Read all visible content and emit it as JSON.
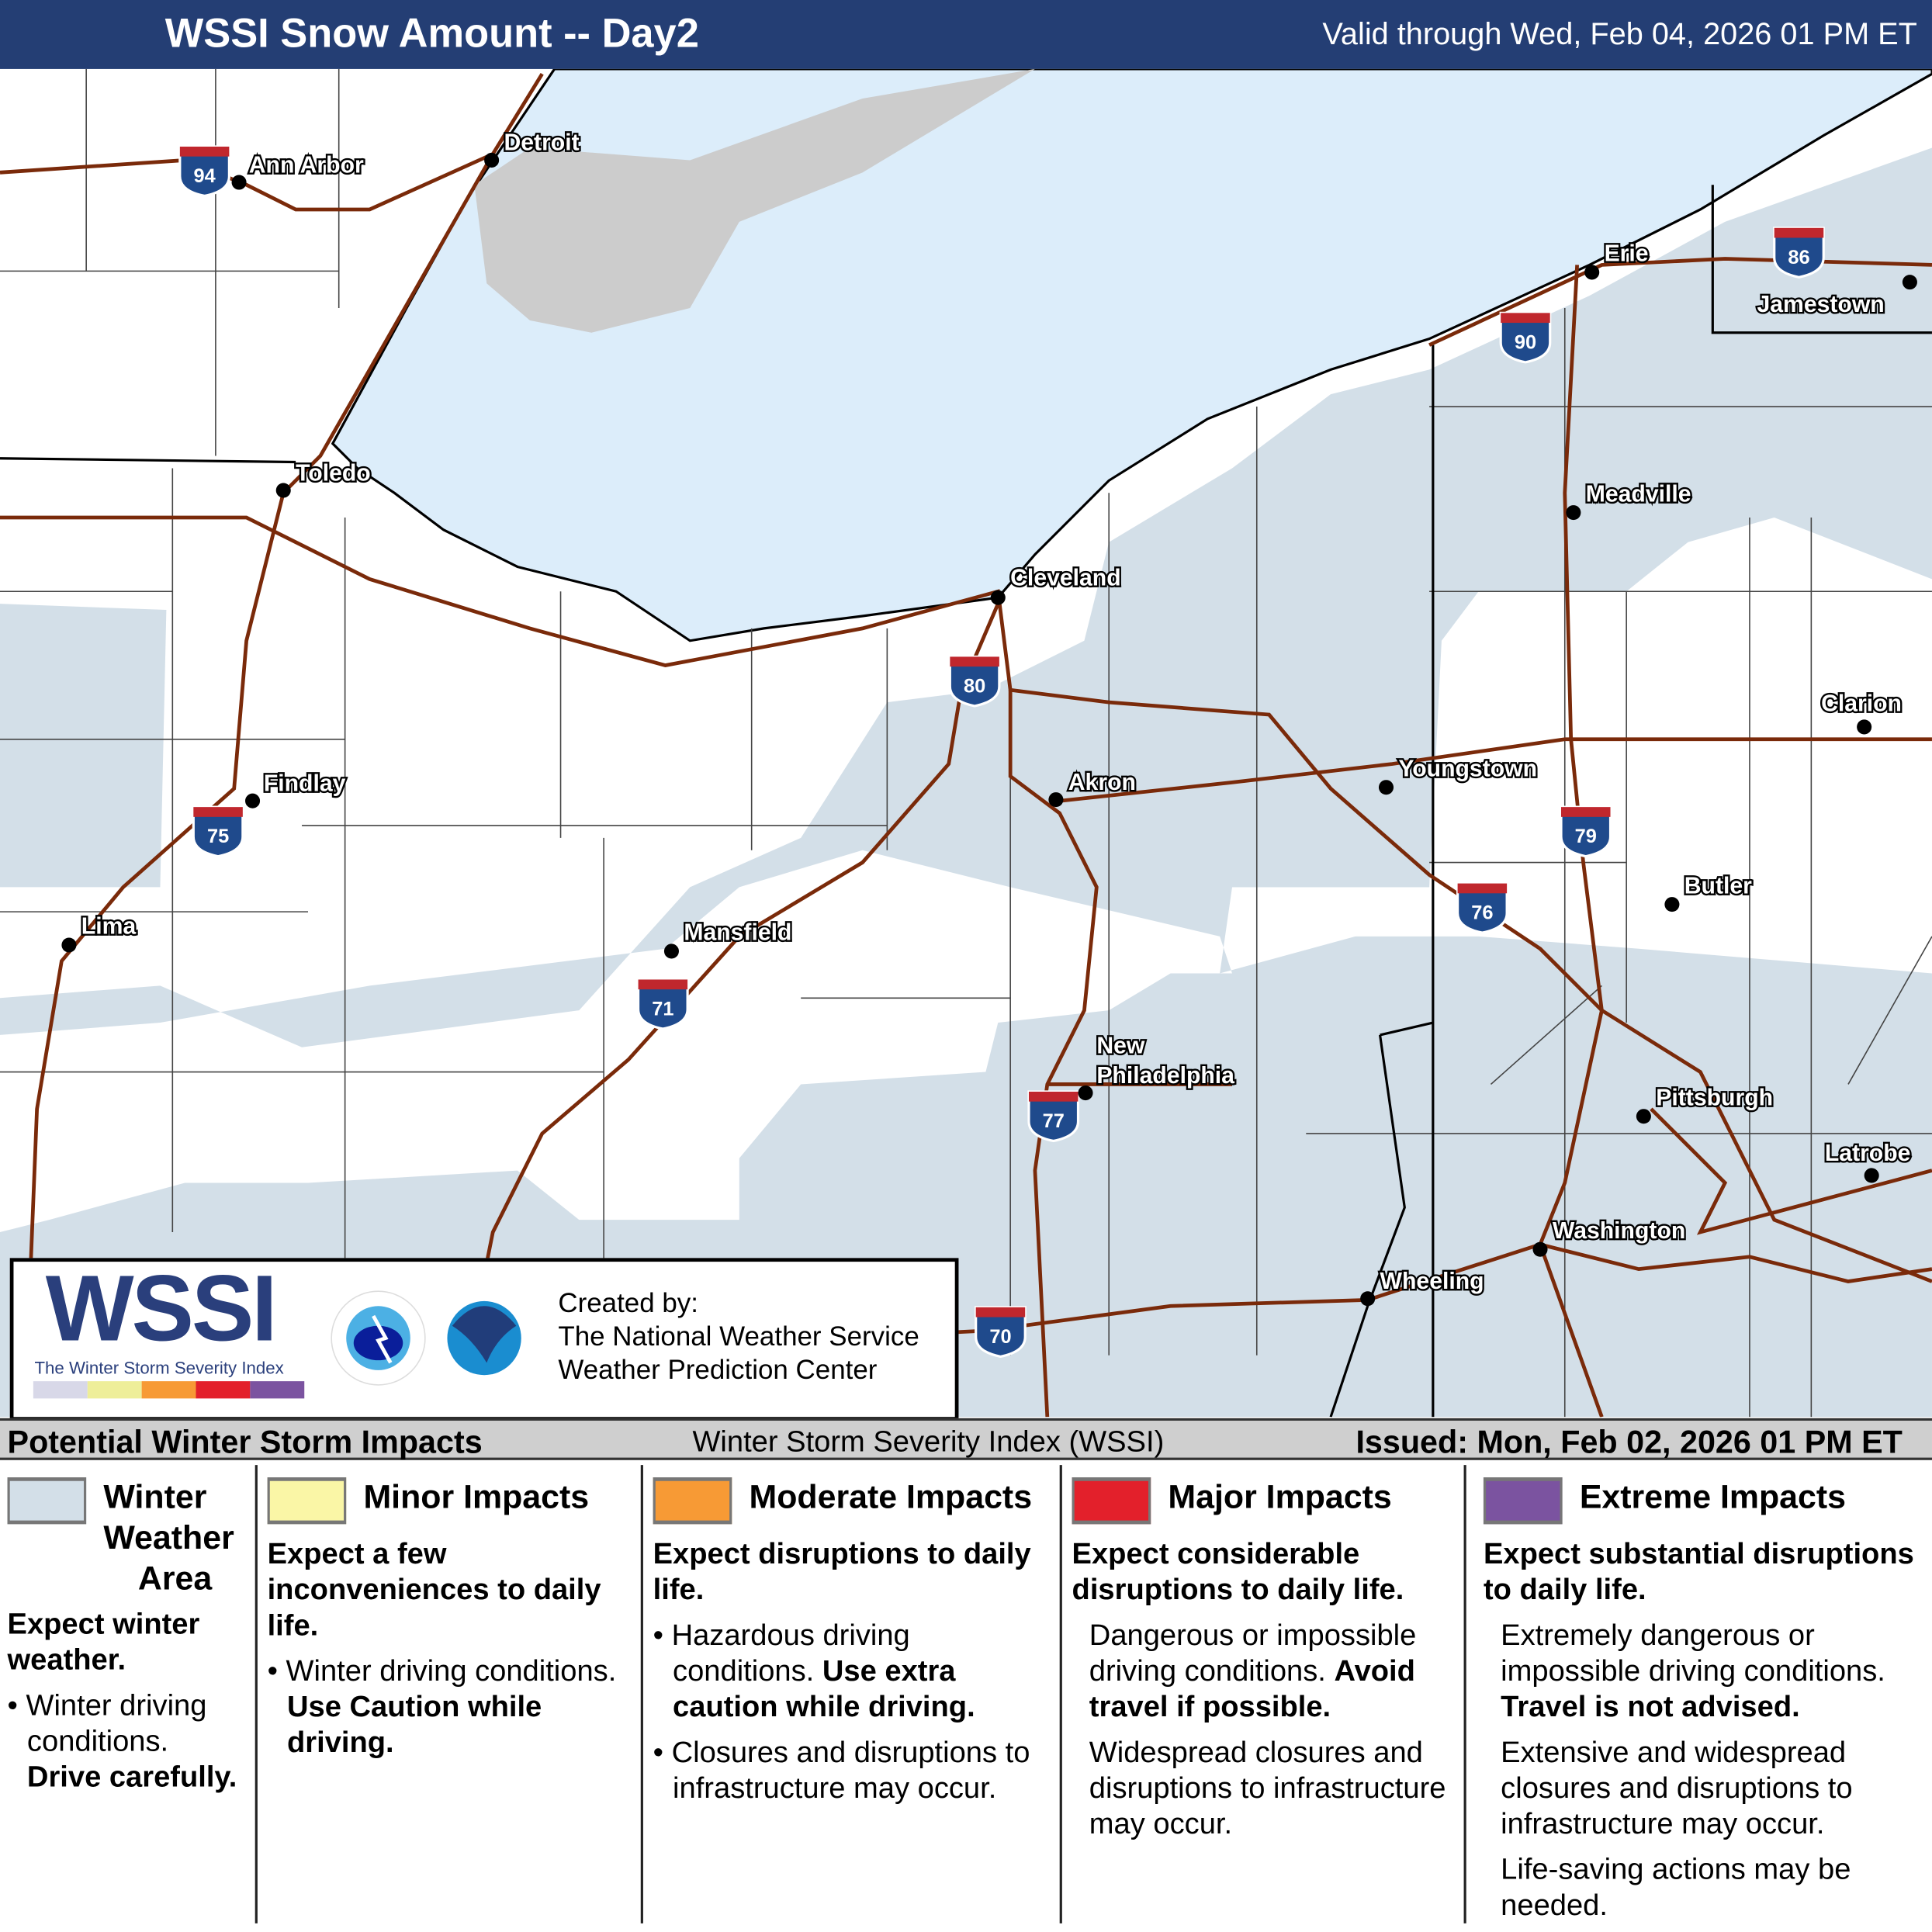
{
  "header": {
    "title": "WSSI Snow Amount -- Day2",
    "valid": "Valid through Wed, Feb 04, 2026 01 PM ET"
  },
  "map": {
    "colors": {
      "lake": "#dcedfa",
      "winter_area": "#d3dfe8",
      "roads": "#7a2a0a",
      "land": "#ffffff",
      "lake_st_clair": "#cccccc"
    },
    "cities": [
      {
        "name": "Ann Arbor"
      },
      {
        "name": "Detroit"
      },
      {
        "name": "Toledo"
      },
      {
        "name": "Findlay"
      },
      {
        "name": "Lima"
      },
      {
        "name": "Cleveland"
      },
      {
        "name": "Akron"
      },
      {
        "name": "Mansfield"
      },
      {
        "name": "Youngstown"
      },
      {
        "name": "Erie"
      },
      {
        "name": "Jamestown"
      },
      {
        "name": "Meadville"
      },
      {
        "name": "Clarion"
      },
      {
        "name": "Butler"
      },
      {
        "name": "Pittsburgh"
      },
      {
        "name": "Latrobe"
      },
      {
        "name": "Washington"
      },
      {
        "name": "Wheeling"
      },
      {
        "name": "New"
      },
      {
        "name": "Philadelphia"
      }
    ],
    "interstates": [
      "94",
      "75",
      "80",
      "71",
      "77",
      "70",
      "90",
      "86",
      "79",
      "76"
    ]
  },
  "logo": {
    "wordmark": "WSSI",
    "tagline": "The Winter Storm Severity Index",
    "created_by": "Created by:",
    "org1": "The National Weather Service",
    "org2": "Weather Prediction Center",
    "scale_colors": [
      "#d8d8e8",
      "#eeee99",
      "#f79a35",
      "#e3202b",
      "#7b53a0"
    ]
  },
  "bar": {
    "left": "Potential Winter Storm Impacts",
    "center": "Winter Storm Severity Index (WSSI)",
    "right": "Issued: Mon, Feb 02, 2026 01 PM ET"
  },
  "legend": [
    {
      "color": "#d3dfe8",
      "title": [
        "Winter",
        "Weather",
        "Area"
      ],
      "head": "Expect winter weather.",
      "bullet": "Winter driving conditions.",
      "bold": "Drive carefully."
    },
    {
      "color": "#faf6a6",
      "title": "Minor Impacts",
      "head": "Expect a few inconveniences to daily life.",
      "bullet": "Winter driving conditions.",
      "bold": "Use Caution while driving."
    },
    {
      "color": "#f79a35",
      "title": "Moderate Impacts",
      "head": "Expect disruptions to daily life.",
      "b1": "Hazardous driving conditions.",
      "b1bold": "Use extra caution while driving.",
      "b2": "Closures and disruptions to infrastructure may occur."
    },
    {
      "color": "#e3202b",
      "title": "Major Impacts",
      "head": "Expect considerable disruptions to daily life.",
      "p1": "Dangerous or impossible driving conditions.",
      "p1bold": "Avoid travel if possible.",
      "p2": "Widespread closures and disruptions to infrastructure may occur."
    },
    {
      "color": "#7b53a0",
      "title": "Extreme Impacts",
      "head": "Expect substantial disruptions to daily life.",
      "p1": "Extremely dangerous or impossible driving conditions.",
      "p1bold": "Travel is not advised.",
      "p2": "Extensive and widespread closures and disruptions to infrastructure may occur.",
      "p3": "Life-saving actions may be needed."
    }
  ]
}
